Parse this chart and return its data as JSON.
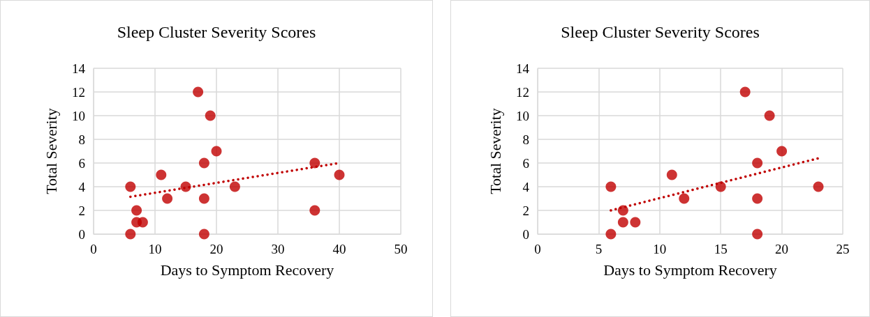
{
  "chart_data": [
    {
      "type": "scatter",
      "title": "Sleep Cluster Severity Scores",
      "xlabel": "Days to Symptom Recovery",
      "ylabel": "Total Severity",
      "xlim": [
        0,
        50
      ],
      "xticks": [
        0,
        10,
        20,
        30,
        40,
        50
      ],
      "ylim": [
        0,
        14
      ],
      "yticks": [
        0,
        2,
        4,
        6,
        8,
        10,
        12,
        14
      ],
      "grid": true,
      "marker": "circle",
      "series": [
        {
          "color": "#c00000",
          "x": [
            6,
            6,
            7,
            7,
            8,
            11,
            12,
            15,
            17,
            18,
            18,
            18,
            19,
            20,
            23,
            36,
            36,
            40
          ],
          "values": [
            4,
            0,
            2,
            1,
            1,
            5,
            3,
            4,
            12,
            6,
            3,
            0,
            10,
            7,
            4,
            6,
            2,
            5
          ]
        },
        {
          "type": "line",
          "color": "#c00000",
          "line_style": "dotted",
          "marker": "none",
          "x": [
            6,
            40
          ],
          "values": [
            3.15,
            6.0
          ]
        }
      ]
    },
    {
      "type": "scatter",
      "title": "Sleep Cluster Severity Scores",
      "xlabel": "Days to Symptom Recovery",
      "ylabel": "Total Severity",
      "xlim": [
        0,
        25
      ],
      "xticks": [
        0,
        5,
        10,
        15,
        20,
        25
      ],
      "ylim": [
        0,
        14
      ],
      "yticks": [
        0,
        2,
        4,
        6,
        8,
        10,
        12,
        14
      ],
      "grid": true,
      "marker": "circle",
      "series": [
        {
          "color": "#c00000",
          "x": [
            6,
            6,
            7,
            7,
            8,
            11,
            12,
            15,
            17,
            18,
            18,
            18,
            19,
            20,
            23
          ],
          "values": [
            4,
            0,
            2,
            1,
            1,
            5,
            3,
            4,
            12,
            6,
            3,
            0,
            10,
            7,
            4
          ]
        },
        {
          "type": "line",
          "color": "#c00000",
          "line_style": "dotted",
          "marker": "none",
          "x": [
            6,
            23
          ],
          "values": [
            2.0,
            6.4
          ]
        }
      ]
    }
  ]
}
